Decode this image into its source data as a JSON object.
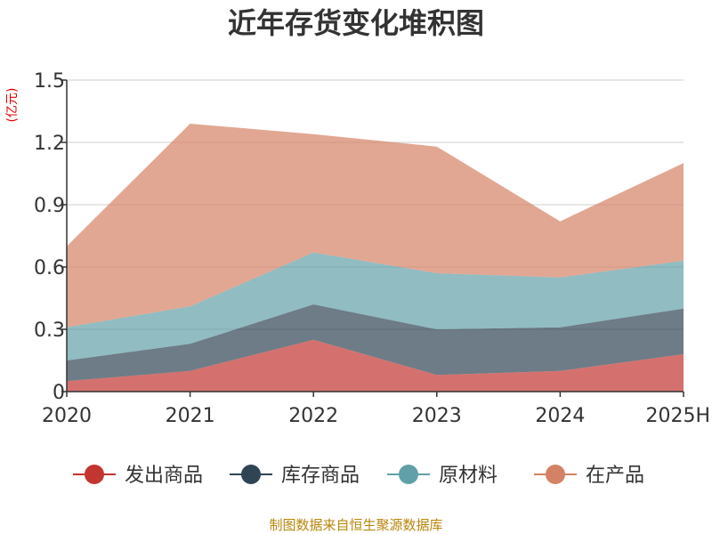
{
  "title": "近年存货变化堆积图",
  "unit": "(亿元)",
  "source": "制图数据来自恒生聚源数据库",
  "chart_data": {
    "type": "area",
    "stacked": true,
    "title": "近年存货变化堆积图",
    "ylabel": "(亿元)",
    "xlabel": "",
    "categories": [
      "2020",
      "2021",
      "2022",
      "2023",
      "2024",
      "2025H"
    ],
    "ylim": [
      0,
      1.5
    ],
    "yticks": [
      "0",
      "0.3",
      "0.6",
      "0.9",
      "1.2",
      "1.5"
    ],
    "grid": true,
    "legend_position": "bottom",
    "series": [
      {
        "name": "发出商品",
        "color": "#c23531",
        "values": [
          0.05,
          0.1,
          0.25,
          0.08,
          0.1,
          0.18
        ]
      },
      {
        "name": "库存商品",
        "color": "#2f4554",
        "values": [
          0.1,
          0.13,
          0.17,
          0.22,
          0.21,
          0.22
        ]
      },
      {
        "name": "原材料",
        "color": "#61a0a8",
        "values": [
          0.16,
          0.18,
          0.25,
          0.27,
          0.24,
          0.23
        ]
      },
      {
        "name": "在产品",
        "color": "#d48265",
        "values": [
          0.39,
          0.88,
          0.57,
          0.61,
          0.27,
          0.47
        ]
      }
    ]
  }
}
